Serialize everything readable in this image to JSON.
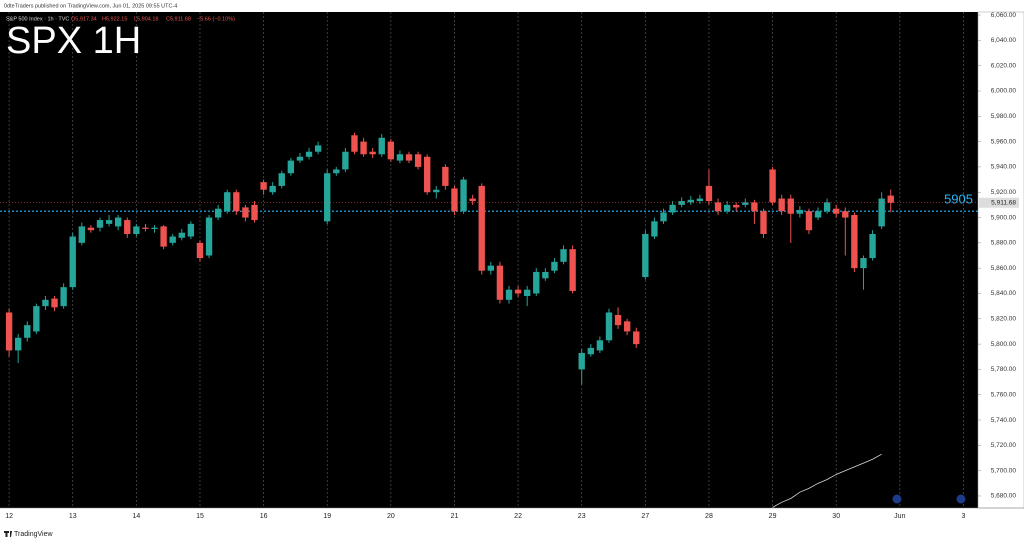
{
  "header": {
    "published": "0dteTraders published on TradingView.com, Jun 01, 2025 09:55 UTC-4",
    "footer": "TradingView"
  },
  "chart_data": {
    "type": "candlestick",
    "title": "SPX 1H",
    "legend": {
      "symbol": "S&P 500 Index · 1h · TVC",
      "o": "O5,917.34",
      "h": "H5,922.15",
      "l": "L5,904.18",
      "c": "C5,911.68",
      "change": "−5.66 (−0.10%)"
    },
    "up_color": "#26a69a",
    "down_color": "#ef5350",
    "open": [
      5825,
      5795,
      5805,
      5810,
      5830,
      5836,
      5830,
      5845,
      5880,
      5892,
      5892,
      5895,
      5893,
      5898,
      5887,
      5892,
      5891,
      5893,
      5880,
      5884,
      5885,
      5880,
      5870,
      5900,
      5905,
      5920,
      5908,
      5910,
      5928,
      5920,
      5925,
      5935,
      5945,
      5948,
      5952,
      5897,
      5935,
      5938,
      5965,
      5960,
      5952,
      5950,
      5960,
      5945,
      5950,
      5950,
      5948,
      5920,
      5940,
      5923,
      5905,
      5915,
      5925,
      5858,
      5862,
      5835,
      5843,
      5838,
      5840,
      5852,
      5858,
      5865,
      5875,
      5780,
      5792,
      5795,
      5803,
      5823,
      5818,
      5810,
      5853,
      5885,
      5897,
      5904,
      5910,
      5912,
      5913,
      5925,
      5912,
      5905,
      5910,
      5910,
      5912,
      5905,
      5938,
      5915,
      5915,
      5903,
      5905,
      5900,
      5905,
      5907,
      5905,
      5902,
      5860,
      5868,
      5893,
      5917.34
    ],
    "high": [
      5828,
      5808,
      5818,
      5832,
      5838,
      5838,
      5848,
      5888,
      5896,
      5894,
      5900,
      5902,
      5902,
      5900,
      5895,
      5895,
      5894,
      5894,
      5887,
      5891,
      5897,
      5882,
      5902,
      5910,
      5922,
      5922,
      5910,
      5913,
      5930,
      5928,
      5937,
      5947,
      5951,
      5955,
      5960,
      5938,
      5940,
      5955,
      5967,
      5963,
      5955,
      5966,
      5962,
      5953,
      5952,
      5952,
      5950,
      5925,
      5942,
      5925,
      5932,
      5918,
      5927,
      5865,
      5865,
      5846,
      5846,
      5846,
      5860,
      5860,
      5868,
      5878,
      5878,
      5796,
      5800,
      5806,
      5828,
      5829,
      5820,
      5813,
      5890,
      5900,
      5907,
      5913,
      5916,
      5917,
      5918,
      5938,
      5915,
      5913,
      5912,
      5915,
      5914,
      5907,
      5940,
      5918,
      5918,
      5909,
      5907,
      5908,
      5915,
      5910,
      5908,
      5904,
      5870,
      5890,
      5920,
      5922.15
    ],
    "low": [
      5790,
      5785,
      5802,
      5808,
      5827,
      5826,
      5828,
      5843,
      5878,
      5888,
      5889,
      5893,
      5890,
      5884,
      5885,
      5889,
      5888,
      5875,
      5878,
      5882,
      5883,
      5865,
      5868,
      5898,
      5903,
      5902,
      5897,
      5896,
      5918,
      5918,
      5923,
      5933,
      5943,
      5946,
      5950,
      5895,
      5933,
      5936,
      5950,
      5948,
      5947,
      5948,
      5944,
      5943,
      5943,
      5938,
      5918,
      5915,
      5922,
      5902,
      5903,
      5910,
      5855,
      5855,
      5832,
      5832,
      5837,
      5830,
      5838,
      5850,
      5856,
      5863,
      5840,
      5768,
      5790,
      5793,
      5801,
      5812,
      5807,
      5797,
      5851,
      5883,
      5895,
      5902,
      5908,
      5910,
      5911,
      5910,
      5902,
      5903,
      5905,
      5908,
      5895,
      5884,
      5910,
      5902,
      5880,
      5900,
      5887,
      5898,
      5903,
      5900,
      5870,
      5857,
      5843,
      5866,
      5891,
      5904.18
    ],
    "close": [
      5795,
      5805,
      5815,
      5830,
      5835,
      5829,
      5845,
      5885,
      5893,
      5890,
      5898,
      5898,
      5900,
      5887,
      5893,
      5891,
      5892,
      5877,
      5885,
      5888,
      5895,
      5868,
      5900,
      5907,
      5920,
      5905,
      5900,
      5898,
      5922,
      5925,
      5935,
      5945,
      5948,
      5952,
      5957,
      5935,
      5938,
      5952,
      5952,
      5950,
      5950,
      5963,
      5946,
      5950,
      5945,
      5940,
      5920,
      5922,
      5925,
      5905,
      5930,
      5913,
      5858,
      5862,
      5835,
      5843,
      5840,
      5843,
      5857,
      5857,
      5865,
      5875,
      5842,
      5793,
      5797,
      5803,
      5825,
      5815,
      5810,
      5800,
      5887,
      5897,
      5904,
      5910,
      5913,
      5914,
      5915,
      5913,
      5905,
      5910,
      5908,
      5912,
      5905,
      5887,
      5912,
      5905,
      5903,
      5906,
      5890,
      5905,
      5912,
      5903,
      5900,
      5860,
      5868,
      5887,
      5915,
      5911.68
    ],
    "line": {
      "color": "#d9d9d9",
      "x": [
        84,
        85,
        86,
        87,
        88,
        89,
        90,
        91,
        92,
        93,
        94,
        95,
        96
      ],
      "values": [
        5671,
        5675,
        5678,
        5683,
        5686,
        5690,
        5693,
        5697,
        5700,
        5703,
        5706,
        5709,
        5713
      ]
    },
    "hline": {
      "value": 5905,
      "label": "5905",
      "color": "#29b6f6"
    },
    "last_price_label": "5,911.68",
    "xlim": [
      -1,
      106.6
    ],
    "ylim": [
      5670.5,
      6062.4
    ],
    "xticks": [
      {
        "value": 0,
        "label": "12"
      },
      {
        "value": 7,
        "label": "13"
      },
      {
        "value": 14,
        "label": "14"
      },
      {
        "value": 21,
        "label": "15"
      },
      {
        "value": 28,
        "label": "16"
      },
      {
        "value": 35,
        "label": "19"
      },
      {
        "value": 42,
        "label": "20"
      },
      {
        "value": 49,
        "label": "21"
      },
      {
        "value": 56,
        "label": "22"
      },
      {
        "value": 63,
        "label": "23"
      },
      {
        "value": 70,
        "label": "27"
      },
      {
        "value": 77,
        "label": "28"
      },
      {
        "value": 84,
        "label": "29"
      },
      {
        "value": 91,
        "label": "30"
      },
      {
        "value": 98,
        "label": "Jun"
      },
      {
        "value": 105,
        "label": "3"
      }
    ],
    "yticks": [
      {
        "value": 5680,
        "label": "5,680.00"
      },
      {
        "value": 5700,
        "label": "5,700.00"
      },
      {
        "value": 5720,
        "label": "5,720.00"
      },
      {
        "value": 5740,
        "label": "5,740.00"
      },
      {
        "value": 5760,
        "label": "5,760.00"
      },
      {
        "value": 5780,
        "label": "5,780.00"
      },
      {
        "value": 5800,
        "label": "5,800.00"
      },
      {
        "value": 5820,
        "label": "5,820.00"
      },
      {
        "value": 5840,
        "label": "5,840.00"
      },
      {
        "value": 5860,
        "label": "5,860.00"
      },
      {
        "value": 5880,
        "label": "5,880.00"
      },
      {
        "value": 5900,
        "label": "5,900.00"
      },
      {
        "value": 5920,
        "label": "5,920.00"
      },
      {
        "value": 5940,
        "label": "5,940.00"
      },
      {
        "value": 5960,
        "label": "5,960.00"
      },
      {
        "value": 5980,
        "label": "5,980.00"
      },
      {
        "value": 6000,
        "label": "6,000.00"
      },
      {
        "value": 6020,
        "label": "6,020.00"
      },
      {
        "value": 6040,
        "label": "6,040.00"
      },
      {
        "value": 6060,
        "label": "6,060.00"
      }
    ],
    "grid": true
  }
}
